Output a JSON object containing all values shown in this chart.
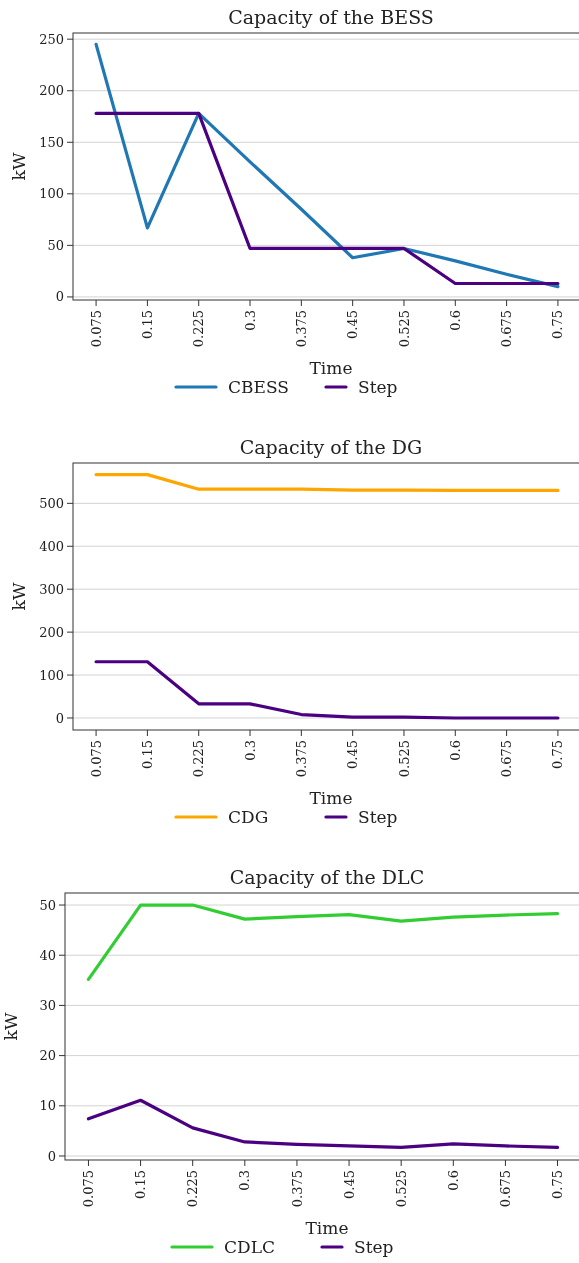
{
  "chart_data": [
    {
      "type": "line",
      "title": "Capacity of the BESS",
      "xlabel": "Time",
      "ylabel": "kW",
      "categories": [
        "0.075",
        "0.15",
        "0.225",
        "0.3",
        "0.375",
        "0.45",
        "0.525",
        "0.6",
        "0.675",
        "0.75"
      ],
      "ylim": [
        -3,
        256
      ],
      "yticks": [
        0,
        50,
        100,
        150,
        200,
        250
      ],
      "grid": "y",
      "legend": "bottom",
      "series": [
        {
          "name": "CBESS",
          "color": "#1f77b4",
          "values": [
            245,
            67,
            178,
            131,
            85,
            38,
            47,
            35,
            22,
            10
          ]
        },
        {
          "name": "Step",
          "color": "#4b0082",
          "values": [
            178,
            178,
            178,
            47,
            47,
            47,
            47,
            13,
            13,
            13
          ]
        }
      ]
    },
    {
      "type": "line",
      "title": "Capacity of the DG",
      "xlabel": "Time",
      "ylabel": "kW",
      "categories": [
        "0.075",
        "0.15",
        "0.225",
        "0.3",
        "0.375",
        "0.45",
        "0.525",
        "0.6",
        "0.675",
        "0.75"
      ],
      "ylim": [
        -28,
        594
      ],
      "yticks": [
        0,
        100,
        200,
        300,
        400,
        500
      ],
      "grid": "y",
      "legend": "bottom",
      "series": [
        {
          "name": "CDG",
          "color": "#ffa500",
          "values": [
            567,
            567,
            533,
            533,
            533,
            531,
            531,
            530,
            530,
            530
          ]
        },
        {
          "name": "Step",
          "color": "#4b0082",
          "values": [
            131,
            131,
            33,
            33,
            8,
            2,
            2,
            0,
            0,
            0
          ]
        }
      ]
    },
    {
      "type": "line",
      "title": "Capacity of the DLC",
      "xlabel": "Time",
      "ylabel": "kW",
      "categories": [
        "0.075",
        "0.15",
        "0.225",
        "0.3",
        "0.375",
        "0.45",
        "0.525",
        "0.6",
        "0.675",
        "0.75"
      ],
      "ylim": [
        -0.8,
        52.4
      ],
      "yticks": [
        0,
        10,
        20,
        30,
        40,
        50
      ],
      "grid": "y",
      "legend": "bottom",
      "series": [
        {
          "name": "CDLC",
          "color": "#32cd32",
          "values": [
            35.2,
            50,
            50,
            47.2,
            47.7,
            48.1,
            46.8,
            47.6,
            48,
            48.3
          ]
        },
        {
          "name": "Step",
          "color": "#4b0082",
          "values": [
            7.4,
            11.1,
            5.6,
            2.8,
            2.3,
            2.0,
            1.7,
            2.4,
            2.0,
            1.7
          ]
        }
      ]
    }
  ]
}
